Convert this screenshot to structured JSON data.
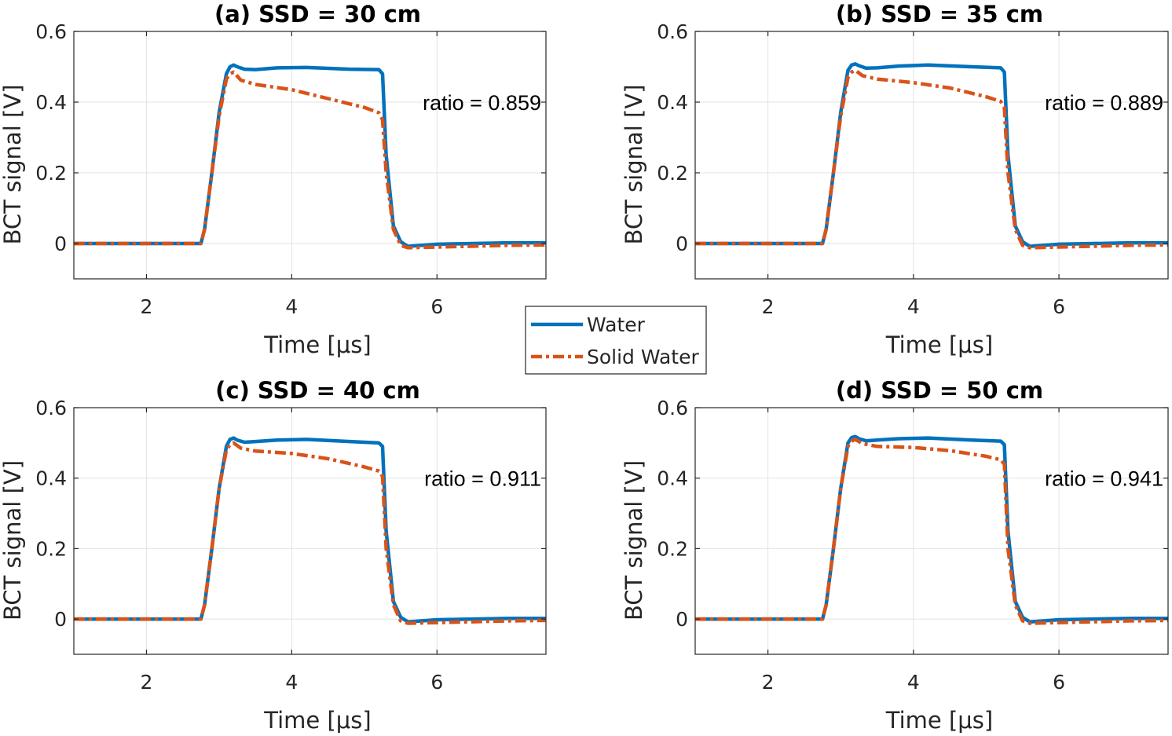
{
  "colors": {
    "water": "#0072BD",
    "solid_water": "#D95319",
    "grid": "#e3e3e3",
    "axis": "#262626"
  },
  "legend": {
    "entries": [
      {
        "label": "Water",
        "series": "water"
      },
      {
        "label": "Solid Water",
        "series": "solid_water"
      }
    ]
  },
  "chart_data": [
    {
      "type": "line",
      "title": "(a) SSD = 30 cm",
      "xlabel": "Time [μs]",
      "ylabel": "BCT signal [V]",
      "xlim": [
        1,
        7.5
      ],
      "ylim": [
        -0.1,
        0.6
      ],
      "xticks": [
        2,
        4,
        6
      ],
      "yticks": [
        0,
        0.2,
        0.4,
        0.6
      ],
      "xtick_labels": [
        "2",
        "4",
        "6"
      ],
      "ytick_labels": [
        "0",
        "0.2",
        "0.4",
        "0.6"
      ],
      "grid": true,
      "annotation": "ratio = 0.859",
      "series": [
        {
          "name": "Water",
          "key": "water",
          "style": "solid",
          "x": [
            1,
            2.75,
            2.8,
            2.9,
            3.0,
            3.1,
            3.15,
            3.2,
            3.25,
            3.35,
            3.5,
            3.8,
            4.2,
            4.8,
            5.2,
            5.25,
            5.3,
            5.4,
            5.5,
            5.6,
            6.0,
            7.0,
            7.5
          ],
          "y": [
            0,
            0,
            0.04,
            0.2,
            0.37,
            0.48,
            0.5,
            0.505,
            0.5,
            0.493,
            0.492,
            0.497,
            0.498,
            0.493,
            0.492,
            0.48,
            0.25,
            0.05,
            0.005,
            -0.008,
            -0.002,
            0.002,
            0.002
          ]
        },
        {
          "name": "Solid Water",
          "key": "solid_water",
          "style": "dashdot",
          "x": [
            1,
            2.75,
            2.8,
            2.9,
            3.0,
            3.1,
            3.15,
            3.2,
            3.3,
            3.5,
            4.0,
            4.5,
            5.0,
            5.2,
            5.25,
            5.3,
            5.4,
            5.5,
            5.6,
            6.0,
            7.0,
            7.5
          ],
          "y": [
            0,
            0,
            0.04,
            0.2,
            0.36,
            0.465,
            0.48,
            0.485,
            0.462,
            0.45,
            0.435,
            0.41,
            0.385,
            0.37,
            0.35,
            0.2,
            0.04,
            -0.005,
            -0.012,
            -0.01,
            -0.005,
            -0.004
          ]
        }
      ]
    },
    {
      "type": "line",
      "title": "(b) SSD = 35 cm",
      "xlabel": "Time [μs]",
      "ylabel": "BCT signal [V]",
      "xlim": [
        1,
        7.5
      ],
      "ylim": [
        -0.1,
        0.6
      ],
      "xticks": [
        2,
        4,
        6
      ],
      "yticks": [
        0,
        0.2,
        0.4,
        0.6
      ],
      "xtick_labels": [
        "2",
        "4",
        "6"
      ],
      "ytick_labels": [
        "0",
        "0.2",
        "0.4",
        "0.6"
      ],
      "grid": true,
      "annotation": "ratio = 0.889",
      "series": [
        {
          "name": "Water",
          "key": "water",
          "style": "solid",
          "x": [
            1,
            2.75,
            2.8,
            2.9,
            3.0,
            3.1,
            3.15,
            3.2,
            3.25,
            3.35,
            3.5,
            3.8,
            4.2,
            4.8,
            5.2,
            5.25,
            5.3,
            5.4,
            5.5,
            5.6,
            6.0,
            7.0,
            7.5
          ],
          "y": [
            0,
            0,
            0.04,
            0.2,
            0.37,
            0.49,
            0.505,
            0.508,
            0.503,
            0.496,
            0.497,
            0.502,
            0.505,
            0.5,
            0.497,
            0.485,
            0.25,
            0.05,
            0.005,
            -0.008,
            -0.002,
            0.002,
            0.002
          ]
        },
        {
          "name": "Solid Water",
          "key": "solid_water",
          "style": "dashdot",
          "x": [
            1,
            2.75,
            2.8,
            2.9,
            3.0,
            3.1,
            3.15,
            3.2,
            3.3,
            3.5,
            4.0,
            4.5,
            5.0,
            5.2,
            5.25,
            5.3,
            5.4,
            5.5,
            5.6,
            6.0,
            7.0,
            7.5
          ],
          "y": [
            0,
            0,
            0.04,
            0.2,
            0.36,
            0.47,
            0.485,
            0.49,
            0.475,
            0.465,
            0.455,
            0.44,
            0.415,
            0.402,
            0.385,
            0.2,
            0.04,
            -0.005,
            -0.012,
            -0.01,
            -0.005,
            -0.004
          ]
        }
      ]
    },
    {
      "type": "line",
      "title": "(c) SSD = 40 cm",
      "xlabel": "Time [μs]",
      "ylabel": "BCT signal [V]",
      "xlim": [
        1,
        7.5
      ],
      "ylim": [
        -0.1,
        0.6
      ],
      "xticks": [
        2,
        4,
        6
      ],
      "yticks": [
        0,
        0.2,
        0.4,
        0.6
      ],
      "xtick_labels": [
        "2",
        "4",
        "6"
      ],
      "ytick_labels": [
        "0",
        "0.2",
        "0.4",
        "0.6"
      ],
      "grid": true,
      "annotation": "ratio = 0.911",
      "series": [
        {
          "name": "Water",
          "key": "water",
          "style": "solid",
          "x": [
            1,
            2.75,
            2.8,
            2.9,
            3.0,
            3.1,
            3.15,
            3.2,
            3.25,
            3.35,
            3.5,
            3.8,
            4.2,
            4.8,
            5.2,
            5.25,
            5.3,
            5.4,
            5.5,
            5.6,
            6.0,
            7.0,
            7.5
          ],
          "y": [
            0,
            0,
            0.04,
            0.2,
            0.37,
            0.49,
            0.51,
            0.514,
            0.508,
            0.502,
            0.504,
            0.508,
            0.51,
            0.504,
            0.5,
            0.49,
            0.25,
            0.05,
            0.005,
            -0.008,
            -0.002,
            0.002,
            0.002
          ]
        },
        {
          "name": "Solid Water",
          "key": "solid_water",
          "style": "dashdot",
          "x": [
            1,
            2.75,
            2.8,
            2.9,
            3.0,
            3.1,
            3.15,
            3.2,
            3.3,
            3.5,
            4.0,
            4.5,
            5.0,
            5.2,
            5.25,
            5.3,
            5.4,
            5.5,
            5.6,
            6.0,
            7.0,
            7.5
          ],
          "y": [
            0,
            0,
            0.04,
            0.2,
            0.37,
            0.48,
            0.495,
            0.5,
            0.485,
            0.477,
            0.47,
            0.455,
            0.432,
            0.42,
            0.405,
            0.2,
            0.04,
            -0.005,
            -0.012,
            -0.01,
            -0.005,
            -0.004
          ]
        }
      ]
    },
    {
      "type": "line",
      "title": "(d) SSD = 50 cm",
      "xlabel": "Time [μs]",
      "ylabel": "BCT signal [V]",
      "xlim": [
        1,
        7.5
      ],
      "ylim": [
        -0.1,
        0.6
      ],
      "xticks": [
        2,
        4,
        6
      ],
      "yticks": [
        0,
        0.2,
        0.4,
        0.6
      ],
      "xtick_labels": [
        "2",
        "4",
        "6"
      ],
      "ytick_labels": [
        "0",
        "0.2",
        "0.4",
        "0.6"
      ],
      "grid": true,
      "annotation": "ratio = 0.941",
      "series": [
        {
          "name": "Water",
          "key": "water",
          "style": "solid",
          "x": [
            1,
            2.75,
            2.8,
            2.9,
            3.0,
            3.1,
            3.15,
            3.2,
            3.25,
            3.35,
            3.5,
            3.8,
            4.2,
            4.8,
            5.2,
            5.25,
            5.3,
            5.4,
            5.5,
            5.6,
            6.0,
            7.0,
            7.5
          ],
          "y": [
            0,
            0,
            0.04,
            0.2,
            0.37,
            0.5,
            0.515,
            0.518,
            0.512,
            0.506,
            0.508,
            0.512,
            0.514,
            0.508,
            0.505,
            0.495,
            0.25,
            0.05,
            0.005,
            -0.008,
            -0.002,
            0.002,
            0.002
          ]
        },
        {
          "name": "Solid Water",
          "key": "solid_water",
          "style": "dashdot",
          "x": [
            1,
            2.75,
            2.8,
            2.9,
            3.0,
            3.1,
            3.15,
            3.2,
            3.3,
            3.5,
            4.0,
            4.5,
            5.0,
            5.2,
            5.25,
            5.3,
            5.4,
            5.5,
            5.6,
            6.0,
            7.0,
            7.5
          ],
          "y": [
            0,
            0,
            0.04,
            0.2,
            0.37,
            0.49,
            0.505,
            0.51,
            0.498,
            0.49,
            0.487,
            0.478,
            0.462,
            0.452,
            0.44,
            0.2,
            0.04,
            -0.005,
            -0.012,
            -0.01,
            -0.005,
            -0.004
          ]
        }
      ]
    }
  ]
}
